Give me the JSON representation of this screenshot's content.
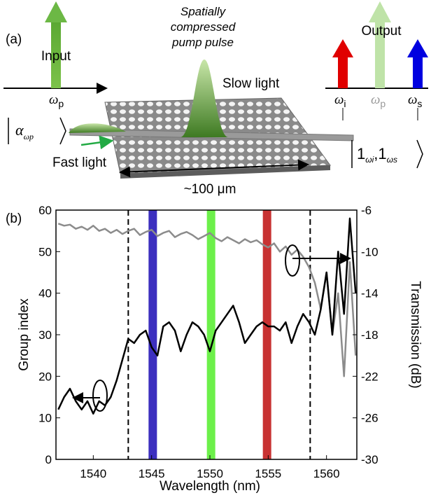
{
  "panel_a": {
    "label": "(a)",
    "input": "Input",
    "input_freq": {
      "symbol": "ω",
      "sub": "p"
    },
    "pump_caption": [
      "Spatially",
      "compressed",
      "pump pulse"
    ],
    "slow_light": "Slow light",
    "fast_light": "Fast light",
    "output": "Output",
    "output_freqs": [
      {
        "symbol": "ω",
        "sub": "i"
      },
      {
        "symbol": "ω",
        "sub": "p"
      },
      {
        "symbol": "ω",
        "sub": "s"
      }
    ],
    "ket_in": {
      "symbol": "α",
      "sub": "ωp"
    },
    "ket_out": {
      "a": "1",
      "a_sub": "ωi",
      "sep": ",",
      "b": "1",
      "b_sub": "ωs"
    },
    "length": "~100 μm"
  },
  "chart_data": {
    "type": "line",
    "panel_label": "(b)",
    "x_label": "Wavelength (nm)",
    "y_label": "Group index",
    "y2_label": "Transmission (dB)",
    "xlim": [
      1536.8,
      1562.6
    ],
    "xticks": [
      1540,
      1545,
      1550,
      1555,
      1560
    ],
    "ylim": [
      0,
      60
    ],
    "yticks": [
      0,
      10,
      20,
      30,
      40,
      50,
      60
    ],
    "y2lim": [
      -30,
      -6
    ],
    "y2ticks": [
      -30,
      -26,
      -22,
      -18,
      -14,
      -10,
      -6
    ],
    "x": [
      1537,
      1537.5,
      1538,
      1538.5,
      1539,
      1539.5,
      1540,
      1540.5,
      1541,
      1541.5,
      1542,
      1542.5,
      1543,
      1543.5,
      1544,
      1544.5,
      1545,
      1545.5,
      1546,
      1546.5,
      1547,
      1547.5,
      1548,
      1548.5,
      1549,
      1549.5,
      1550,
      1550.5,
      1551,
      1551.5,
      1552,
      1552.5,
      1553,
      1553.5,
      1554,
      1554.5,
      1555,
      1555.5,
      1556,
      1556.5,
      1557,
      1557.5,
      1558,
      1558.5,
      1559,
      1559.5,
      1560,
      1560.5,
      1561,
      1561.5,
      1562,
      1562.5
    ],
    "series": [
      {
        "color": "#000000",
        "axis": "y",
        "values": [
          12,
          15,
          17,
          14,
          12,
          14,
          11,
          14,
          13,
          15,
          19,
          24,
          29,
          28,
          30,
          31,
          27,
          25,
          32,
          33,
          31,
          26,
          30,
          33,
          32,
          30,
          26,
          31,
          33,
          35,
          37,
          33,
          28,
          30,
          32,
          33,
          32,
          32,
          31,
          33,
          28,
          32,
          35,
          33,
          30,
          36,
          45,
          30,
          50,
          35,
          58,
          40
        ]
      },
      {
        "color": "#8c8c8c",
        "axis": "y2",
        "values": [
          -7.3,
          -7.5,
          -7.4,
          -7.8,
          -7.6,
          -7.9,
          -7.5,
          -8.0,
          -7.8,
          -8.2,
          -7.9,
          -8.3,
          -8.0,
          -7.8,
          -8.4,
          -8.1,
          -7.9,
          -8.5,
          -8.2,
          -8.0,
          -8.6,
          -8.3,
          -8.1,
          -8.4,
          -8.8,
          -8.5,
          -8.2,
          -8.7,
          -9.0,
          -8.6,
          -8.9,
          -9.2,
          -8.8,
          -9.1,
          -8.9,
          -9.3,
          -9.6,
          -9.2,
          -10.0,
          -9.5,
          -10.3,
          -9.8,
          -10.5,
          -11.5,
          -13.0,
          -15.5,
          -12.0,
          -18.0,
          -14.0,
          -22.0,
          -11.0,
          -20.0
        ]
      }
    ],
    "bands": [
      {
        "x": 1545.1,
        "color": "#3c2fbf"
      },
      {
        "x": 1550.1,
        "color": "#6cf04a"
      },
      {
        "x": 1554.9,
        "color": "#c83232"
      }
    ],
    "vlines": [
      1543.0,
      1558.6
    ]
  }
}
